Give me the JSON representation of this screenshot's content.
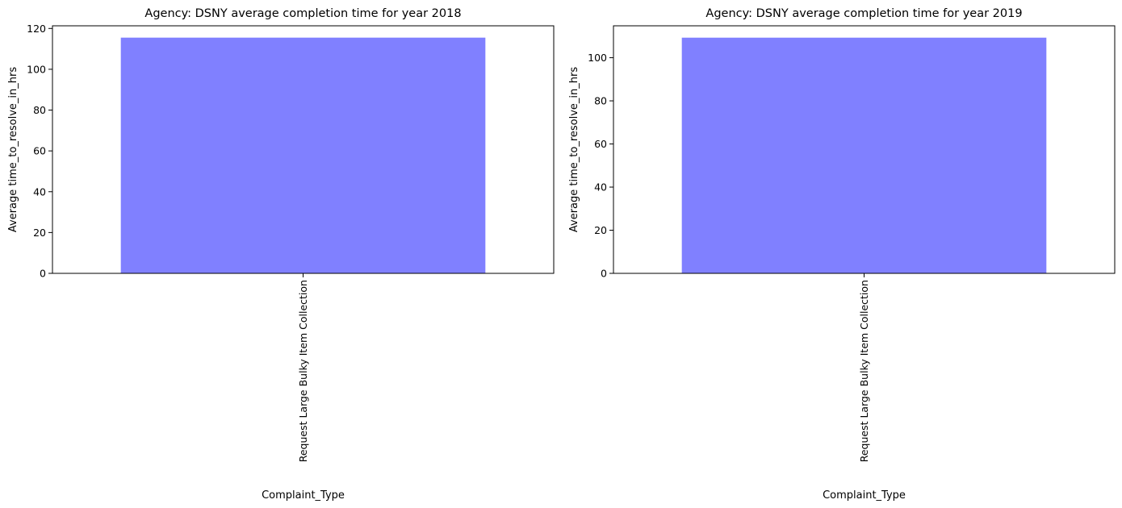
{
  "chart_data": [
    {
      "type": "bar",
      "title": "Agency: DSNY average completion time for year 2018",
      "xlabel": "Complaint_Type",
      "ylabel": "Average time_to_resolve_in_hrs",
      "categories": [
        "Request Large Bulky Item Collection"
      ],
      "values": [
        115.5
      ],
      "ylim": [
        0,
        121.3
      ],
      "yticks": [
        0,
        20,
        40,
        60,
        80,
        100,
        120
      ],
      "bar_color": "#8080ff",
      "grid": false
    },
    {
      "type": "bar",
      "title": "Agency: DSNY average completion time for year 2019",
      "xlabel": "Complaint_Type",
      "ylabel": "Average time_to_resolve_in_hrs",
      "categories": [
        "Request Large Bulky Item Collection"
      ],
      "values": [
        109.3
      ],
      "ylim": [
        0,
        114.8
      ],
      "yticks": [
        0,
        20,
        40,
        60,
        80,
        100
      ],
      "bar_color": "#8080ff",
      "grid": false
    }
  ]
}
